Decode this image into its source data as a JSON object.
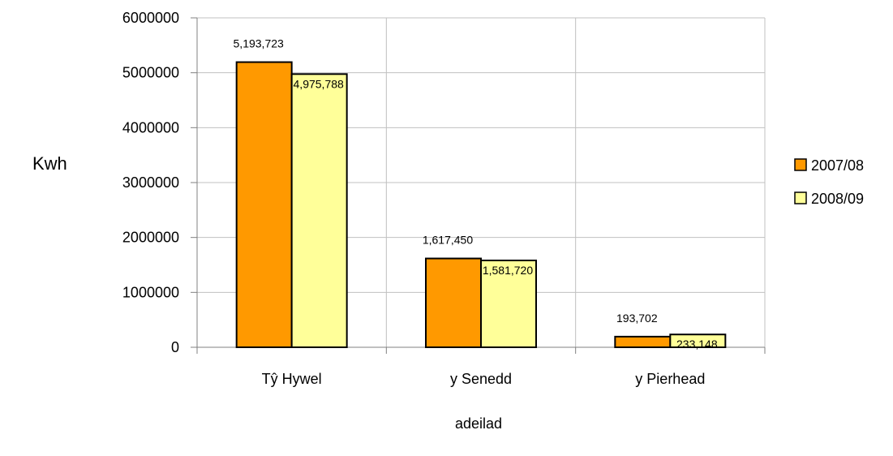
{
  "chart_data": {
    "type": "bar",
    "categories": [
      "Tŷ Hywel",
      "y Senedd",
      "y Pierhead"
    ],
    "series": [
      {
        "name": "2007/08",
        "values": [
          5193723,
          1617450,
          193702
        ],
        "labels": [
          "5,193,723",
          "1,617,450",
          "193,702"
        ],
        "color": "#FF9900"
      },
      {
        "name": "2008/09",
        "values": [
          4975788,
          1581720,
          233148
        ],
        "labels": [
          "4,975,788",
          "1,581,720",
          "233,148"
        ],
        "color": "#FFFF99"
      }
    ],
    "ylabel": "Kwh",
    "xlabel": "adeilad",
    "ylim": [
      0,
      6000000
    ],
    "yticks": [
      0,
      1000000,
      2000000,
      3000000,
      4000000,
      5000000,
      6000000
    ],
    "ytick_labels": [
      "0",
      "1000000",
      "2000000",
      "3000000",
      "4000000",
      "5000000",
      "6000000"
    ],
    "grid": true,
    "legend_position": "right",
    "bar_outline_color": "#000000",
    "grid_color": "#C0C0C0"
  }
}
